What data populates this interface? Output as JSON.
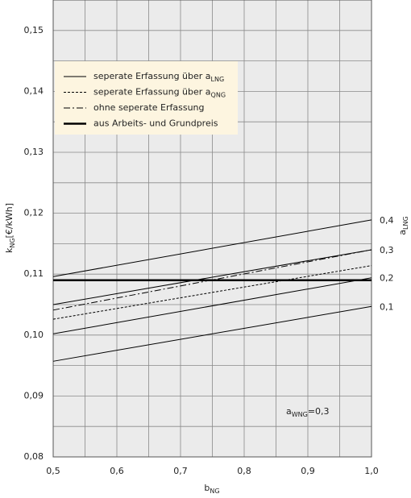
{
  "chart_data": {
    "type": "line",
    "x_label": {
      "main": "b",
      "sub": "NG"
    },
    "y_label": {
      "main": "k",
      "sub": "NG",
      "rest": "[€/kWh]"
    },
    "y2_label": {
      "main": "a",
      "sub": "LNG"
    },
    "annotation": {
      "main": "a",
      "sub": "WNG",
      "rest": "=0,3"
    },
    "x": [
      0.5,
      1.0
    ],
    "xlim": [
      0.5,
      1.0
    ],
    "ylim": [
      0.08,
      0.155
    ],
    "xticks": [
      {
        "value": 0.5,
        "label": "0,5"
      },
      {
        "value": 0.6,
        "label": "0,6"
      },
      {
        "value": 0.7,
        "label": "0,7"
      },
      {
        "value": 0.8,
        "label": "0,8"
      },
      {
        "value": 0.9,
        "label": "0,9"
      },
      {
        "value": 1.0,
        "label": "1,0"
      }
    ],
    "yticks": [
      {
        "value": 0.08,
        "label": "0,08"
      },
      {
        "value": 0.09,
        "label": "0,09"
      },
      {
        "value": 0.1,
        "label": "0,10"
      },
      {
        "value": 0.11,
        "label": "0,11"
      },
      {
        "value": 0.12,
        "label": "0,12"
      },
      {
        "value": 0.13,
        "label": "0,13"
      },
      {
        "value": 0.14,
        "label": "0,14"
      },
      {
        "value": 0.15,
        "label": "0,15"
      }
    ],
    "x_minor_grid": [
      0.55,
      0.65,
      0.75,
      0.85,
      0.95
    ],
    "y_minor_grid": [
      0.085,
      0.095,
      0.105,
      0.115,
      0.125,
      0.135,
      0.145
    ],
    "grid": true,
    "series": [
      {
        "name": "seperate Erfassung über a",
        "name_sub": "LNG",
        "style": "solid",
        "color": "#000000",
        "lines": [
          {
            "label": "0,4",
            "values": [
              0.1096,
              0.1189
            ]
          },
          {
            "label": "0,3",
            "values": [
              0.105,
              0.114
            ]
          },
          {
            "label": "0,2",
            "values": [
              0.1002,
              0.1094
            ]
          },
          {
            "label": "0,1",
            "values": [
              0.0957,
              0.1047
            ]
          }
        ]
      },
      {
        "name": "seperate Erfassung über a",
        "name_sub": "QNG",
        "style": "dashed",
        "color": "#000000",
        "lines": [
          {
            "values": [
              0.1026,
              0.1114
            ]
          }
        ]
      },
      {
        "name": "ohne seperate Erfassung",
        "style": "dashdot",
        "color": "#000000",
        "lines": [
          {
            "values": [
              0.1041,
              0.114
            ]
          }
        ]
      },
      {
        "name": "aus Arbeits- und Grundpreis",
        "style": "thick",
        "color": "#000000",
        "lines": [
          {
            "values": [
              0.109,
              0.109
            ]
          }
        ]
      }
    ]
  }
}
